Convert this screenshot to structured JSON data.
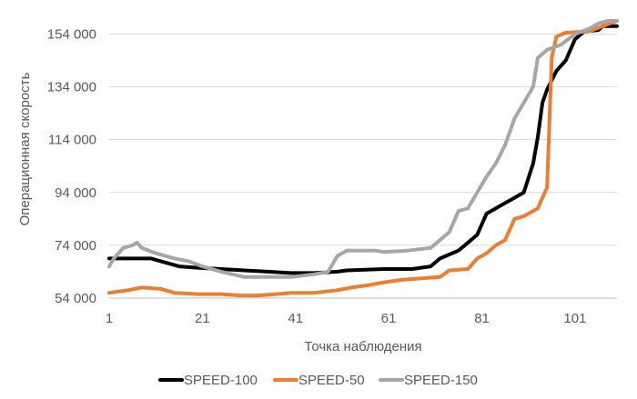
{
  "chart_data": {
    "type": "line",
    "title": "",
    "xlabel": "Точка наблюдения",
    "ylabel": "Операционная скорость",
    "xlim": [
      1,
      110
    ],
    "ylim": [
      54000,
      160000
    ],
    "x_ticks": [
      1,
      21,
      41,
      61,
      81,
      101
    ],
    "x_tick_labels": [
      "1",
      "21",
      "41",
      "61",
      "81",
      "101"
    ],
    "y_ticks": [
      54000,
      74000,
      94000,
      114000,
      134000,
      154000
    ],
    "y_tick_labels": [
      "54 000",
      "74 000",
      "94 000",
      "114 000",
      "134 000",
      "154 000"
    ],
    "grid": "horizontal",
    "legend_position": "bottom",
    "series": [
      {
        "name": "SPEED-100",
        "color": "#000000",
        "points": [
          [
            1,
            69000
          ],
          [
            10,
            69000
          ],
          [
            12,
            68000
          ],
          [
            16,
            66000
          ],
          [
            20,
            65500
          ],
          [
            25,
            65000
          ],
          [
            30,
            64500
          ],
          [
            35,
            64000
          ],
          [
            40,
            63500
          ],
          [
            45,
            63500
          ],
          [
            50,
            64000
          ],
          [
            52,
            64500
          ],
          [
            60,
            65000
          ],
          [
            66,
            65000
          ],
          [
            70,
            66000
          ],
          [
            72,
            69000
          ],
          [
            76,
            72000
          ],
          [
            80,
            78000
          ],
          [
            82,
            86000
          ],
          [
            84,
            88000
          ],
          [
            86,
            90000
          ],
          [
            88,
            92000
          ],
          [
            90,
            94000
          ],
          [
            92,
            105000
          ],
          [
            93,
            115000
          ],
          [
            94,
            128000
          ],
          [
            95,
            133000
          ],
          [
            97,
            140000
          ],
          [
            99,
            144000
          ],
          [
            101,
            152000
          ],
          [
            103,
            155000
          ],
          [
            106,
            155500
          ],
          [
            107,
            157000
          ],
          [
            110,
            157000
          ]
        ]
      },
      {
        "name": "SPEED-50",
        "color": "#ED7D31",
        "points": [
          [
            1,
            56000
          ],
          [
            5,
            57000
          ],
          [
            8,
            58000
          ],
          [
            12,
            57500
          ],
          [
            15,
            56000
          ],
          [
            20,
            55500
          ],
          [
            25,
            55500
          ],
          [
            29,
            55000
          ],
          [
            33,
            55000
          ],
          [
            37,
            55500
          ],
          [
            40,
            56000
          ],
          [
            45,
            56000
          ],
          [
            50,
            57000
          ],
          [
            53,
            58000
          ],
          [
            57,
            59000
          ],
          [
            60,
            60000
          ],
          [
            64,
            61000
          ],
          [
            68,
            61500
          ],
          [
            72,
            62000
          ],
          [
            74,
            64500
          ],
          [
            78,
            65000
          ],
          [
            80,
            69000
          ],
          [
            82,
            71000
          ],
          [
            84,
            74000
          ],
          [
            86,
            76000
          ],
          [
            88,
            84000
          ],
          [
            90,
            85000
          ],
          [
            92,
            87000
          ],
          [
            93,
            88000
          ],
          [
            94,
            92000
          ],
          [
            95,
            96000
          ],
          [
            96,
            145000
          ],
          [
            97,
            153000
          ],
          [
            99,
            154500
          ],
          [
            104,
            155000
          ],
          [
            107,
            157000
          ],
          [
            110,
            159000
          ]
        ]
      },
      {
        "name": "SPEED-150",
        "color": "#A6A6A6",
        "points": [
          [
            1,
            66000
          ],
          [
            2,
            69000
          ],
          [
            4,
            73000
          ],
          [
            6,
            74000
          ],
          [
            7,
            75000
          ],
          [
            8,
            73000
          ],
          [
            11,
            71000
          ],
          [
            15,
            69000
          ],
          [
            18,
            68000
          ],
          [
            21,
            66000
          ],
          [
            25,
            64000
          ],
          [
            30,
            62000
          ],
          [
            35,
            62000
          ],
          [
            40,
            62000
          ],
          [
            45,
            63000
          ],
          [
            48,
            64000
          ],
          [
            50,
            70000
          ],
          [
            52,
            72000
          ],
          [
            58,
            72000
          ],
          [
            60,
            71500
          ],
          [
            65,
            72000
          ],
          [
            70,
            73000
          ],
          [
            72,
            76000
          ],
          [
            74,
            79000
          ],
          [
            76,
            87000
          ],
          [
            78,
            88000
          ],
          [
            80,
            94000
          ],
          [
            82,
            100000
          ],
          [
            84,
            105000
          ],
          [
            86,
            112000
          ],
          [
            88,
            122000
          ],
          [
            90,
            128000
          ],
          [
            92,
            134000
          ],
          [
            93,
            145000
          ],
          [
            95,
            148000
          ],
          [
            98,
            150000
          ],
          [
            101,
            154000
          ],
          [
            104,
            156000
          ],
          [
            106,
            158000
          ],
          [
            108,
            159000
          ],
          [
            110,
            159000
          ]
        ]
      }
    ]
  }
}
